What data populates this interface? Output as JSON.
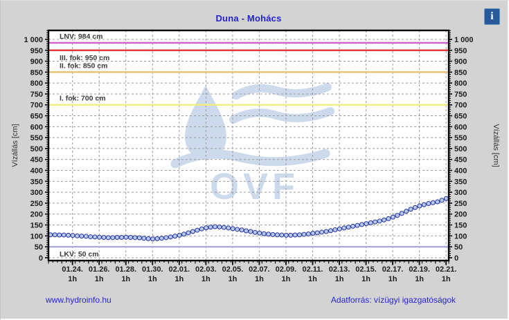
{
  "header": {
    "title": "Duna - Mohács",
    "title_color": "#2121cd"
  },
  "info_icon": {
    "glyph": "i",
    "bg_color": "#27599b"
  },
  "footer": {
    "site": "www.hydroinfo.hu",
    "source": "Adatforrás: vízügyi igazgatóságok",
    "link_color": "#2525cc"
  },
  "chart_data": {
    "type": "scatter",
    "title": "Duna - Mohács",
    "ylabel_left": "Vízállás [cm]",
    "ylabel_right": "Vízállás [cm]",
    "yaxis": {
      "min": 0,
      "max": 1000,
      "major_step": 50,
      "minor_step": 10,
      "draw_min": -13,
      "draw_max": 1041,
      "thousand_label": "1 000"
    },
    "xaxis": {
      "span_days": 30,
      "label_start_day": 1.8,
      "label_step_days": 2,
      "sub_label": "1h",
      "labels": [
        "01.24.",
        "01.26.",
        "01.28.",
        "01.30.",
        "02.01.",
        "02.03.",
        "02.05.",
        "02.07.",
        "02.09.",
        "02.11.",
        "02.13.",
        "02.15.",
        "02.17.",
        "02.19.",
        "02.21."
      ]
    },
    "reference_lines": [
      {
        "label": "LNV: 984 cm",
        "value": 984,
        "color": "#cb65cb",
        "label_side": "above"
      },
      {
        "label": "III. fok: 950 cm",
        "value": 950,
        "color": "#e23b3b",
        "label_side": "below"
      },
      {
        "label": "II. fok: 850 cm",
        "value": 850,
        "color": "#e7c070",
        "label_side": "above"
      },
      {
        "label": "I. fok: 700 cm",
        "value": 700,
        "color": "#f2ee7d",
        "label_side": "above"
      },
      {
        "label": "LKV: 50 cm",
        "value": 50,
        "color": "#a9a9dd",
        "label_side": "below"
      }
    ],
    "series": [
      {
        "name": "vízállás",
        "point_fill": "#b9c9ef",
        "point_stroke": "#23329f",
        "line_color": "#23329f",
        "x_start_day": 0.15,
        "x_step_days": 0.33333,
        "values": [
          105,
          105,
          104,
          104,
          103,
          102,
          100,
          99,
          98,
          96,
          95,
          94,
          93,
          92,
          92,
          93,
          93,
          94,
          93,
          92,
          91,
          89,
          87,
          86,
          87,
          89,
          92,
          95,
          99,
          103,
          108,
          114,
          120,
          126,
          132,
          137,
          140,
          142,
          141,
          139,
          136,
          133,
          130,
          127,
          123,
          120,
          116,
          113,
          110,
          108,
          106,
          105,
          104,
          103,
          103,
          104,
          105,
          107,
          109,
          112,
          114,
          117,
          120,
          124,
          128,
          132,
          136,
          140,
          144,
          148,
          152,
          156,
          160,
          164,
          168,
          173,
          179,
          186,
          194,
          203,
          213,
          222,
          230,
          237,
          243,
          248,
          252,
          256,
          263,
          271
        ]
      }
    ],
    "watermark": {
      "text": "OVF",
      "color": "#cbd9ec"
    },
    "grid": {
      "color": "#9a9a9a",
      "dash": "3,3"
    },
    "plot_bg": "#ffffff",
    "frame_color": "#000000",
    "tick_label_color": "#1c1c1c",
    "ref_label_color": "#3c3c3c",
    "axis_title_color": "#333333"
  }
}
